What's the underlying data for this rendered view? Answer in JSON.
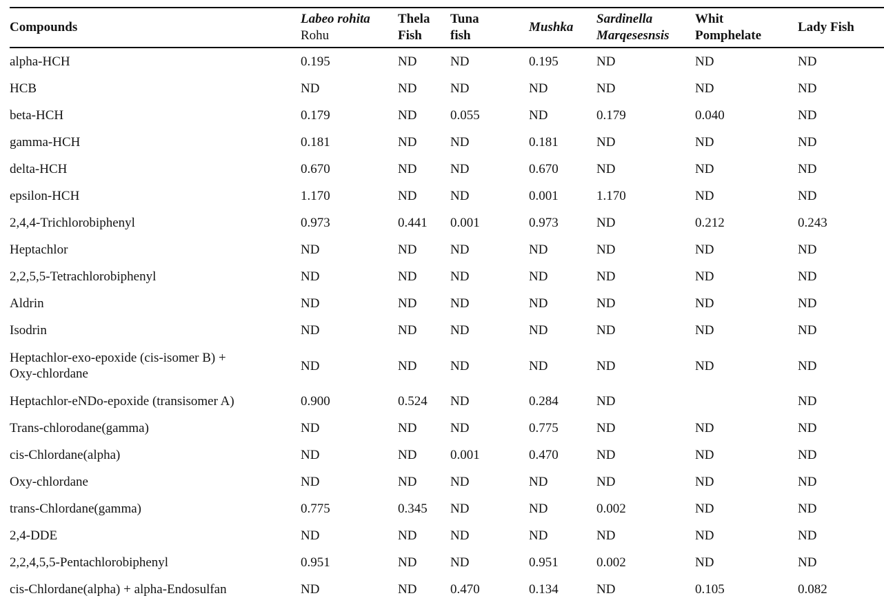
{
  "colors": {
    "background": "#ffffff",
    "text": "#141414",
    "rule": "#000000"
  },
  "table": {
    "columns": [
      {
        "id": "compounds",
        "lines": [
          {
            "text": "Compounds",
            "bold": true,
            "italic": false
          }
        ]
      },
      {
        "id": "labeo-rohita-rohu",
        "lines": [
          {
            "text": "Labeo rohita",
            "bold": true,
            "italic": true
          },
          {
            "text": "Rohu",
            "bold": false,
            "italic": false
          }
        ]
      },
      {
        "id": "thela-fish",
        "lines": [
          {
            "text": "Thela",
            "bold": true,
            "italic": false
          },
          {
            "text": "Fish",
            "bold": true,
            "italic": false
          }
        ]
      },
      {
        "id": "tuna-fish",
        "lines": [
          {
            "text": "Tuna",
            "bold": true,
            "italic": false
          },
          {
            "text": "fish",
            "bold": true,
            "italic": false
          }
        ]
      },
      {
        "id": "mushka",
        "lines": [
          {
            "text": "Mushka",
            "bold": true,
            "italic": true
          }
        ]
      },
      {
        "id": "sardinella-marqesesnsis",
        "lines": [
          {
            "text": "Sardinella",
            "bold": true,
            "italic": true
          },
          {
            "text": "Marqesesnsis",
            "bold": true,
            "italic": true
          }
        ]
      },
      {
        "id": "whit-pomphelate",
        "lines": [
          {
            "text": "Whit",
            "bold": true,
            "italic": false
          },
          {
            "text": "Pomphelate",
            "bold": true,
            "italic": false
          }
        ]
      },
      {
        "id": "lady-fish",
        "lines": [
          {
            "text": "Lady Fish",
            "bold": true,
            "italic": false
          }
        ]
      }
    ],
    "rows": [
      {
        "compound": "alpha-HCH",
        "values": [
          "0.195",
          "ND",
          "ND",
          "0.195",
          "ND",
          "ND",
          "ND"
        ]
      },
      {
        "compound": "HCB",
        "values": [
          "ND",
          "ND",
          "ND",
          "ND",
          "ND",
          "ND",
          "ND"
        ]
      },
      {
        "compound": "beta-HCH",
        "values": [
          "0.179",
          "ND",
          "0.055",
          "ND",
          "0.179",
          "0.040",
          "ND"
        ]
      },
      {
        "compound": "gamma-HCH",
        "values": [
          "0.181",
          "ND",
          "ND",
          "0.181",
          "ND",
          "ND",
          "ND"
        ]
      },
      {
        "compound": "delta-HCH",
        "values": [
          "0.670",
          "ND",
          "ND",
          "0.670",
          "ND",
          "ND",
          "ND"
        ]
      },
      {
        "compound": "epsilon-HCH",
        "values": [
          "1.170",
          "ND",
          "ND",
          "0.001",
          "1.170",
          "ND",
          "ND"
        ]
      },
      {
        "compound": "2,4,4-Trichlorobiphenyl",
        "values": [
          "0.973",
          "0.441",
          "0.001",
          "0.973",
          "ND",
          "0.212",
          "0.243"
        ]
      },
      {
        "compound": "Heptachlor",
        "values": [
          "ND",
          "ND",
          "ND",
          "ND",
          "ND",
          "ND",
          "ND"
        ]
      },
      {
        "compound": "2,2,5,5-Tetrachlorobiphenyl",
        "values": [
          "ND",
          "ND",
          "ND",
          "ND",
          "ND",
          "ND",
          "ND"
        ]
      },
      {
        "compound": "Aldrin",
        "values": [
          "ND",
          "ND",
          "ND",
          "ND",
          "ND",
          "ND",
          "ND"
        ]
      },
      {
        "compound": "Isodrin",
        "values": [
          "ND",
          "ND",
          "ND",
          "ND",
          "ND",
          "ND",
          "ND"
        ]
      },
      {
        "compound": "Heptachlor-exo-epoxide (cis-isomer B) +\nOxy-chlordane",
        "values": [
          "ND",
          "ND",
          "ND",
          "ND",
          "ND",
          "ND",
          "ND"
        ]
      },
      {
        "compound": "Heptachlor-eNDo-epoxide (transisomer A)",
        "values": [
          "0.900",
          "0.524",
          "ND",
          "0.284",
          "ND",
          "",
          "ND"
        ]
      },
      {
        "compound": "Trans-chlorodane(gamma)",
        "values": [
          "ND",
          "ND",
          "ND",
          "0.775",
          "ND",
          "ND",
          "ND"
        ]
      },
      {
        "compound": "cis-Chlordane(alpha)",
        "values": [
          "ND",
          "ND",
          "0.001",
          "0.470",
          "ND",
          "ND",
          "ND"
        ]
      },
      {
        "compound": "Oxy-chlordane",
        "values": [
          "ND",
          "ND",
          "ND",
          "ND",
          "ND",
          "ND",
          "ND"
        ]
      },
      {
        "compound": "trans-Chlordane(gamma)",
        "values": [
          "0.775",
          "0.345",
          "ND",
          "ND",
          "0.002",
          "ND",
          "ND"
        ]
      },
      {
        "compound": "2,4-DDE",
        "values": [
          "ND",
          "ND",
          "ND",
          "ND",
          "ND",
          "ND",
          "ND"
        ]
      },
      {
        "compound": "2,2,4,5,5-Pentachlorobiphenyl",
        "values": [
          "0.951",
          "ND",
          "ND",
          "0.951",
          "0.002",
          "ND",
          "ND"
        ]
      },
      {
        "compound": "cis-Chlordane(alpha) + alpha-Endosulfan",
        "values": [
          "ND",
          "ND",
          "0.470",
          "0.134",
          "ND",
          "0.105",
          "0.082"
        ]
      }
    ]
  }
}
